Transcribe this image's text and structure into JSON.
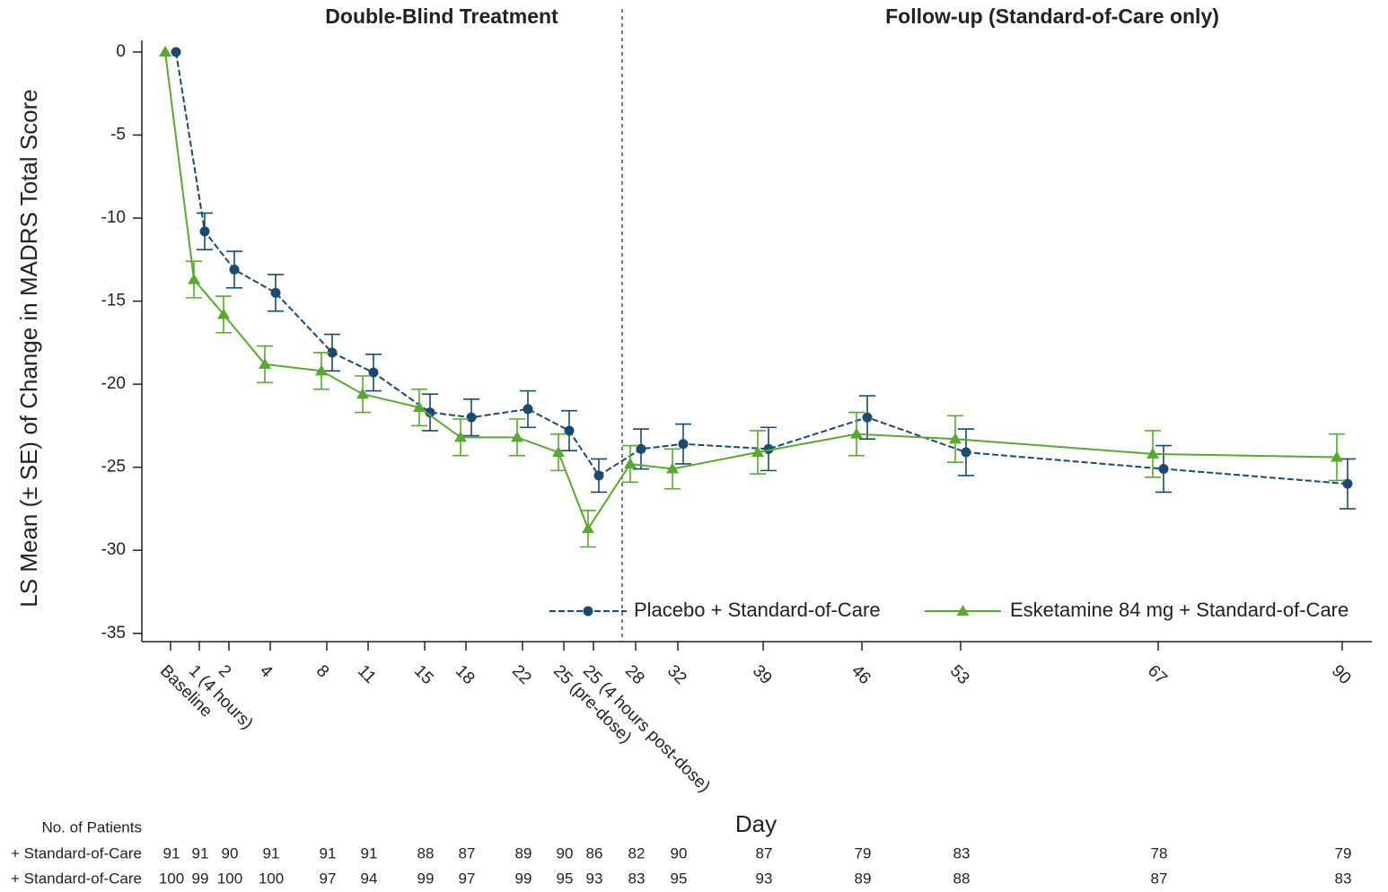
{
  "chart_data": {
    "type": "line",
    "y_label": "LS Mean (± SE) of Change in MADRS Total Score",
    "x_label": "Day",
    "annotations": [
      "Double-Blind Treatment",
      "Follow-up (Standard-of-Care only)"
    ],
    "categories": [
      "Baseline",
      "1 (4 hours)",
      "2",
      "4",
      "8",
      "11",
      "15",
      "18",
      "22",
      "25 (pre-dose)",
      "25 (4 hours post-dose)",
      "28",
      "32",
      "39",
      "46",
      "53",
      "67",
      "90"
    ],
    "ylim": [
      -35.5,
      0.7
    ],
    "yticks": [
      0,
      -5,
      -10,
      -15,
      -20,
      -25,
      -30,
      -35
    ],
    "series": [
      {
        "name": "Placebo + Standard-of-Care",
        "color": "#1b4a70",
        "marker": "circle",
        "dashed": true,
        "values": [
          0,
          -10.8,
          -13.1,
          -14.5,
          -18.1,
          -19.3,
          -21.7,
          -22.0,
          -21.5,
          -22.8,
          -25.5,
          -23.9,
          -23.6,
          -23.9,
          -22.0,
          -24.1,
          -25.1,
          -26.0
        ],
        "errors": [
          0,
          1.1,
          1.1,
          1.1,
          1.1,
          1.1,
          1.1,
          1.1,
          1.1,
          1.2,
          1.0,
          1.2,
          1.2,
          1.3,
          1.3,
          1.4,
          1.4,
          1.5
        ]
      },
      {
        "name": "Esketamine 84 mg + Standard-of-Care",
        "color": "#5aa832",
        "marker": "triangle",
        "dashed": false,
        "values": [
          0,
          -13.7,
          -15.8,
          -18.8,
          -19.2,
          -20.6,
          -21.4,
          -23.2,
          -23.2,
          -24.1,
          -28.7,
          -24.8,
          -25.1,
          -24.1,
          -23.0,
          -23.3,
          -24.2,
          -24.4
        ],
        "errors": [
          0,
          1.1,
          1.1,
          1.1,
          1.1,
          1.1,
          1.1,
          1.1,
          1.1,
          1.1,
          1.1,
          1.1,
          1.2,
          1.3,
          1.3,
          1.4,
          1.4,
          1.4
        ]
      }
    ],
    "patients_table": {
      "title": "No. of Patients",
      "rows": [
        {
          "label": "+ Standard-of-Care",
          "values": [
            91,
            91,
            90,
            91,
            91,
            91,
            88,
            87,
            89,
            90,
            86,
            82,
            90,
            87,
            79,
            83,
            78,
            79
          ]
        },
        {
          "label": "+ Standard-of-Care",
          "values": [
            100,
            99,
            100,
            100,
            97,
            94,
            99,
            97,
            99,
            95,
            93,
            83,
            95,
            93,
            89,
            88,
            87,
            83
          ]
        }
      ]
    }
  }
}
